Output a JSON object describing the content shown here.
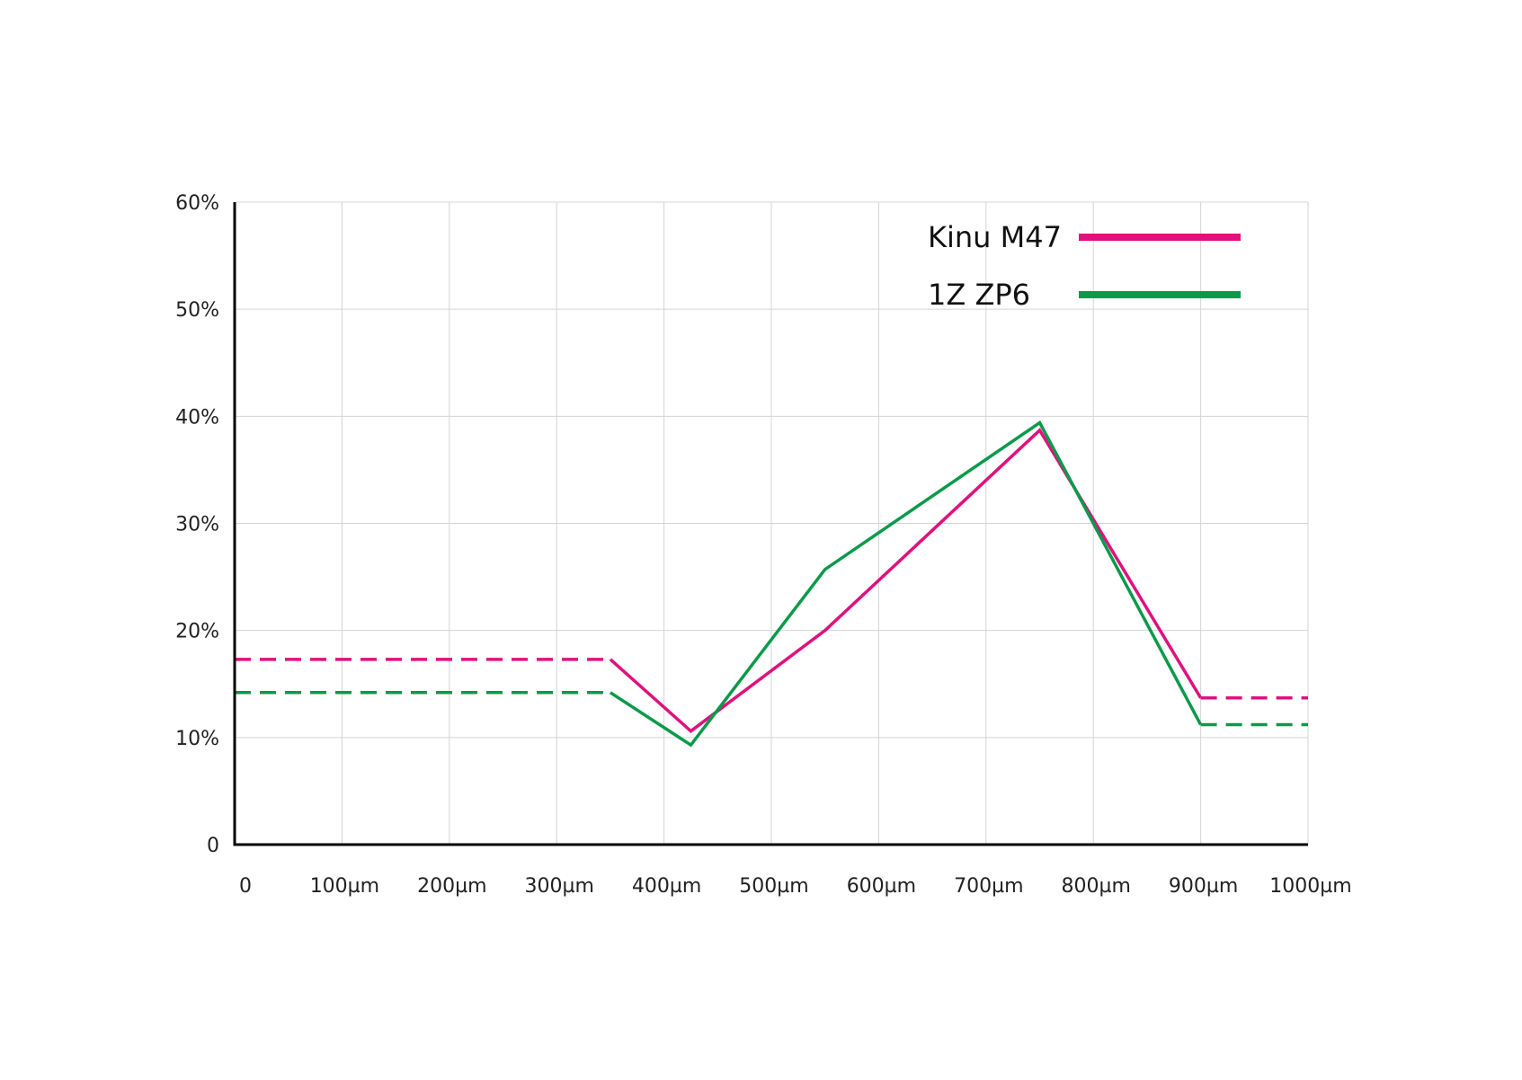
{
  "chart_data": {
    "type": "line",
    "x_ticks": [
      "0",
      "100µm",
      "200µm",
      "300µm",
      "400µm",
      "500µm",
      "600µm",
      "700µm",
      "800µm",
      "900µm",
      "1000µm"
    ],
    "y_ticks": [
      "0",
      "10%",
      "20%",
      "30%",
      "40%",
      "50%",
      "60%"
    ],
    "xlim": [
      0,
      1000
    ],
    "ylim": [
      0,
      60
    ],
    "grid": true,
    "legend_position": "top-right",
    "series": [
      {
        "name": "Kinu M47",
        "color": "#e0107f",
        "dashed_segments": [
          {
            "x": [
              0,
              350
            ],
            "y": [
              17.3,
              17.3
            ]
          },
          {
            "x": [
              900,
              1000
            ],
            "y": [
              13.7,
              13.7
            ]
          }
        ],
        "solid_points": {
          "x": [
            350,
            425,
            550,
            750,
            900
          ],
          "y": [
            17.3,
            10.6,
            20.0,
            38.7,
            13.7
          ]
        }
      },
      {
        "name": "1Z ZP6",
        "color": "#0a9a4a",
        "dashed_segments": [
          {
            "x": [
              0,
              350
            ],
            "y": [
              14.2,
              14.2
            ]
          },
          {
            "x": [
              900,
              1000
            ],
            "y": [
              11.2,
              11.2
            ]
          }
        ],
        "solid_points": {
          "x": [
            350,
            425,
            550,
            750,
            900
          ],
          "y": [
            14.2,
            9.3,
            25.7,
            39.4,
            11.2
          ]
        }
      }
    ]
  }
}
